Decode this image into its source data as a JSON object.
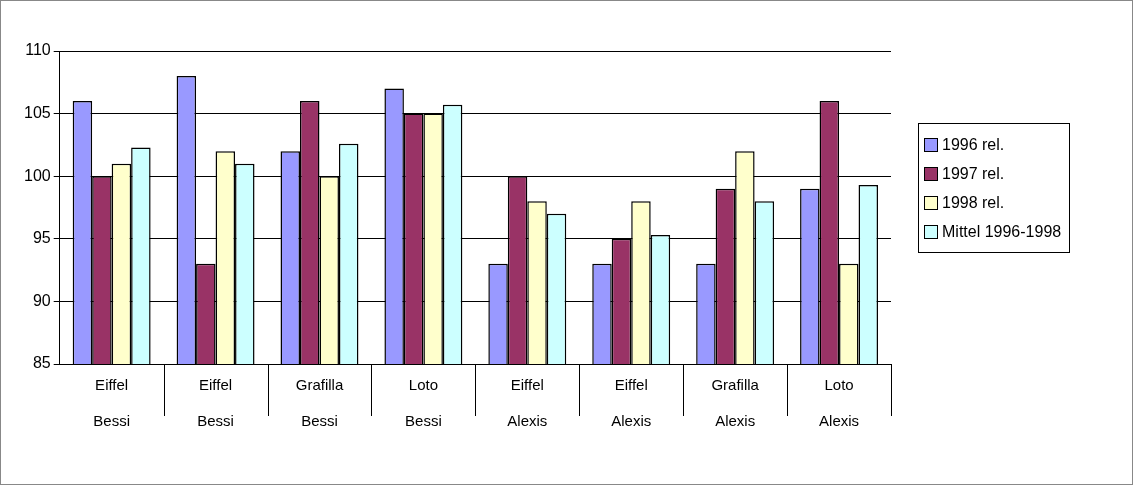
{
  "chart_data": {
    "type": "bar",
    "categories": [
      "Eiffel\nBessi",
      "Eiffel\nBessi",
      "Grafilla\nBessi",
      "Loto\nBessi",
      "Eiffel\nAlexis",
      "Eiffel\nAlexis",
      "Grafilla\nAlexis",
      "Loto\nAlexis"
    ],
    "series": [
      {
        "name": "1996 rel.",
        "color": "#9999ff",
        "values": [
          106,
          108,
          102,
          107,
          93,
          93,
          93,
          99
        ]
      },
      {
        "name": "1997 rel.",
        "color": "#993366",
        "values": [
          100,
          93,
          106,
          105,
          100,
          95,
          99,
          106
        ]
      },
      {
        "name": "1998 rel.",
        "color": "#ffffcc",
        "values": [
          101,
          102,
          100,
          105,
          98,
          98,
          102,
          93
        ]
      },
      {
        "name": "Mittel 1996-1998",
        "color": "#ccffff",
        "values": [
          102.3,
          101,
          102.6,
          105.7,
          97,
          95.3,
          98,
          99.3
        ]
      }
    ],
    "ylim": [
      85,
      110
    ],
    "yticks": [
      85,
      90,
      95,
      100,
      105,
      110
    ],
    "grid": "y",
    "legend": "right"
  }
}
